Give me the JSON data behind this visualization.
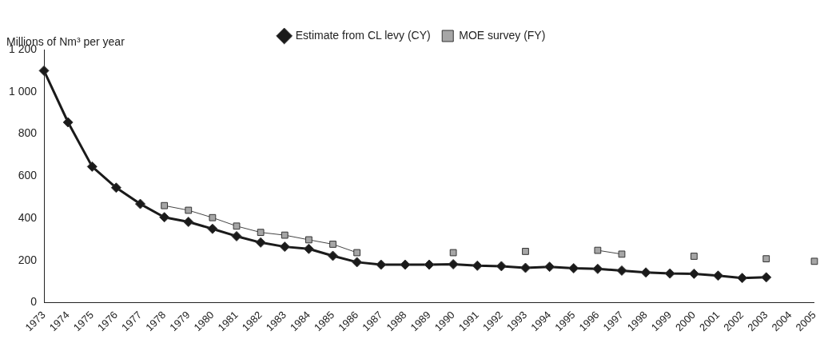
{
  "chart_data": {
    "type": "line",
    "ylabel": "Millions of Nm³ per year",
    "categories": [
      "1973",
      "1974",
      "1975",
      "1976",
      "1977",
      "1978",
      "1979",
      "1980",
      "1981",
      "1982",
      "1983",
      "1984",
      "1985",
      "1986",
      "1987",
      "1988",
      "1989",
      "1990",
      "1991",
      "1992",
      "1993",
      "1994",
      "1995",
      "1996",
      "1997",
      "1998",
      "1999",
      "2000",
      "2001",
      "2002",
      "2003",
      "2004",
      "2005"
    ],
    "series": [
      {
        "name": "Estimate from CL levy (CY)",
        "color": "#1a1a1a",
        "marker": "diamond",
        "values": [
          1100,
          855,
          645,
          545,
          468,
          405,
          383,
          350,
          315,
          285,
          265,
          255,
          222,
          192,
          180,
          180,
          180,
          182,
          175,
          173,
          165,
          170,
          163,
          160,
          152,
          143,
          138,
          137,
          128,
          117,
          120,
          null,
          null
        ]
      },
      {
        "name": "MOE survey (FY)",
        "color": "#a6a6a6",
        "marker": "square",
        "values": [
          null,
          null,
          null,
          null,
          null,
          460,
          438,
          403,
          363,
          333,
          320,
          298,
          277,
          237,
          null,
          null,
          null,
          237,
          null,
          null,
          243,
          null,
          null,
          248,
          230,
          null,
          null,
          220,
          null,
          null,
          208,
          null,
          196
        ]
      }
    ],
    "ylim": [
      0,
      1200
    ],
    "yticks": [
      0,
      200,
      400,
      600,
      800,
      {
        "value": 1000,
        "label": "1 000"
      },
      {
        "value": 1200,
        "label": "1 200"
      }
    ],
    "grid": false,
    "legend": "top"
  }
}
